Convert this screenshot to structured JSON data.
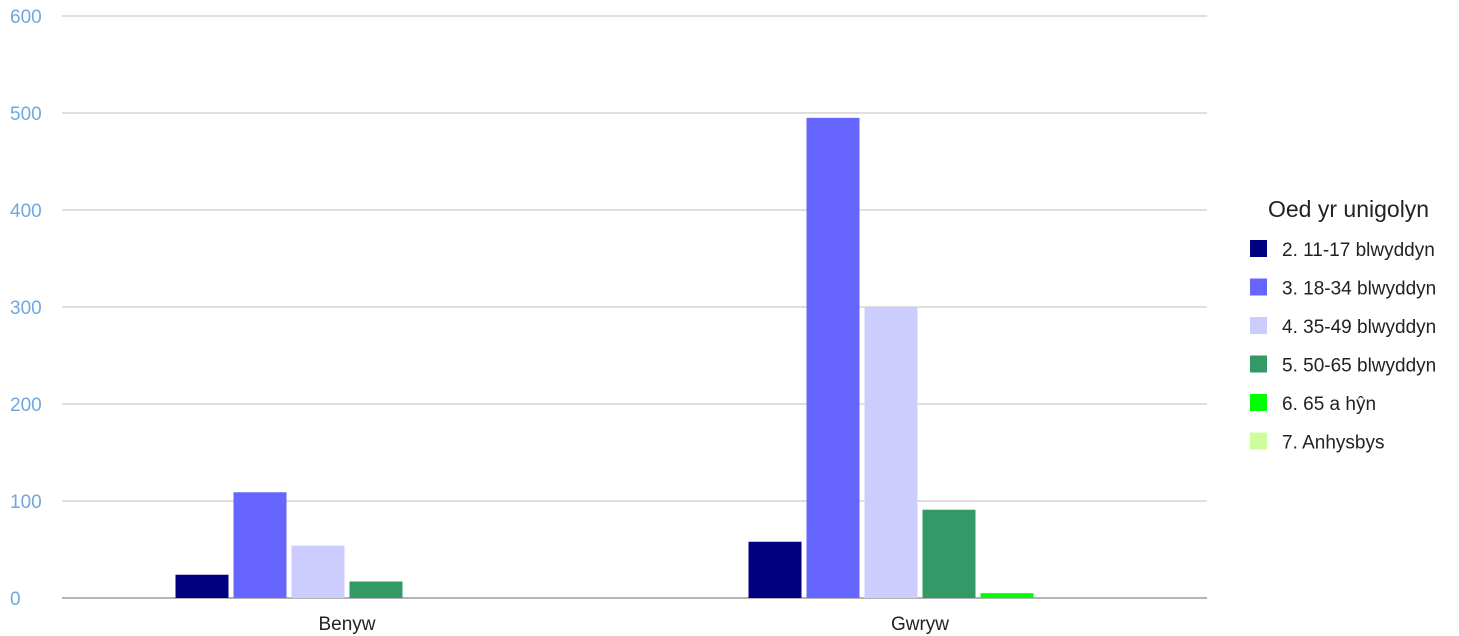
{
  "chart_data": {
    "type": "bar",
    "categories": [
      "Benyw",
      "Gwryw"
    ],
    "ylim": [
      0,
      600
    ],
    "yticks": [
      0,
      100,
      200,
      300,
      400,
      500,
      600
    ],
    "grid": true,
    "legend": {
      "title": "Oed yr unigolyn",
      "placement": "right"
    },
    "series": [
      {
        "name": "2. 11-17 blwyddyn",
        "color": "#000080",
        "values": [
          24,
          58
        ]
      },
      {
        "name": "3. 18-34 blwyddyn",
        "color": "#6666ff",
        "values": [
          109,
          495
        ]
      },
      {
        "name": "4. 35-49 blwyddyn",
        "color": "#ccccff",
        "values": [
          54,
          300
        ]
      },
      {
        "name": "5. 50-65 blwyddyn",
        "color": "#339966",
        "values": [
          17,
          91
        ]
      },
      {
        "name": "6. 65 a hŷn",
        "color": "#00ff00",
        "values": [
          0,
          5
        ]
      },
      {
        "name": "7. Anhysbys",
        "color": "#ccff99",
        "values": [
          0,
          0
        ]
      }
    ]
  }
}
